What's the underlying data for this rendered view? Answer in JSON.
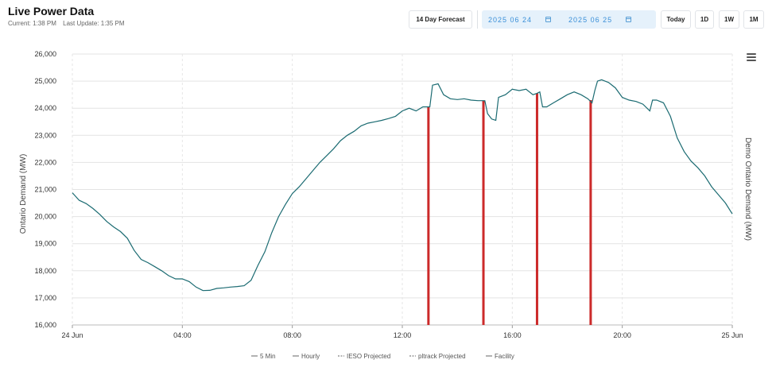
{
  "header": {
    "title": "Live Power Data",
    "current": "Current: 1:38 PM",
    "last_update": "Last Update: 1:35 PM"
  },
  "toolbar": {
    "forecast_label": "14 Day Forecast",
    "start_date": "2025 06 24",
    "end_date": "2025 06 25",
    "today_label": "Today",
    "d1_label": "1D",
    "w1_label": "1W",
    "m1_label": "1M"
  },
  "colors": {
    "series": "#1b6b72",
    "event": "#cc2a2a",
    "grid": "#e3e3e3"
  },
  "chart_data": {
    "type": "line",
    "ylabel": "Ontario Demand (MW)",
    "y2label": "Demo Ontario Demand (MW)",
    "ylim": [
      16000,
      26000
    ],
    "yticks": [
      "16,000",
      "17,000",
      "18,000",
      "19,000",
      "20,000",
      "21,000",
      "22,000",
      "23,000",
      "24,000",
      "25,000",
      "26,000"
    ],
    "xlim": [
      0,
      24
    ],
    "xticks": [
      {
        "hour": 0,
        "label": "24 Jun"
      },
      {
        "hour": 4,
        "label": "04:00"
      },
      {
        "hour": 8,
        "label": "08:00"
      },
      {
        "hour": 12,
        "label": "12:00"
      },
      {
        "hour": 16,
        "label": "16:00"
      },
      {
        "hour": 20,
        "label": "20:00"
      },
      {
        "hour": 24,
        "label": "25 Jun"
      }
    ],
    "legend_position": "bottom",
    "legend": [
      "5 Min",
      "Hourly",
      "IESO Projected",
      "pltrack Projected",
      "Facility"
    ],
    "series": [
      {
        "name": "5 Min",
        "points": [
          [
            0,
            20880
          ],
          [
            0.25,
            20600
          ],
          [
            0.5,
            20480
          ],
          [
            0.75,
            20300
          ],
          [
            1,
            20080
          ],
          [
            1.25,
            19820
          ],
          [
            1.5,
            19620
          ],
          [
            1.75,
            19450
          ],
          [
            2,
            19200
          ],
          [
            2.25,
            18750
          ],
          [
            2.5,
            18420
          ],
          [
            2.75,
            18300
          ],
          [
            3,
            18150
          ],
          [
            3.25,
            18000
          ],
          [
            3.5,
            17820
          ],
          [
            3.75,
            17700
          ],
          [
            4,
            17700
          ],
          [
            4.25,
            17600
          ],
          [
            4.5,
            17400
          ],
          [
            4.75,
            17270
          ],
          [
            5,
            17280
          ],
          [
            5.25,
            17350
          ],
          [
            5.5,
            17370
          ],
          [
            5.75,
            17400
          ],
          [
            6,
            17420
          ],
          [
            6.25,
            17450
          ],
          [
            6.5,
            17650
          ],
          [
            6.75,
            18200
          ],
          [
            7,
            18700
          ],
          [
            7.25,
            19400
          ],
          [
            7.5,
            20000
          ],
          [
            7.75,
            20450
          ],
          [
            8,
            20850
          ],
          [
            8.25,
            21100
          ],
          [
            8.5,
            21400
          ],
          [
            8.75,
            21700
          ],
          [
            9,
            22000
          ],
          [
            9.25,
            22250
          ],
          [
            9.5,
            22500
          ],
          [
            9.75,
            22800
          ],
          [
            10,
            23000
          ],
          [
            10.25,
            23150
          ],
          [
            10.5,
            23350
          ],
          [
            10.75,
            23450
          ],
          [
            11,
            23500
          ],
          [
            11.25,
            23550
          ],
          [
            11.5,
            23620
          ],
          [
            11.75,
            23700
          ],
          [
            12,
            23900
          ],
          [
            12.25,
            24000
          ],
          [
            12.5,
            23900
          ],
          [
            12.75,
            24050
          ],
          [
            13,
            24050
          ],
          [
            13.1,
            24850
          ],
          [
            13.3,
            24900
          ],
          [
            13.5,
            24500
          ],
          [
            13.75,
            24350
          ],
          [
            14,
            24320
          ],
          [
            14.25,
            24350
          ],
          [
            14.5,
            24300
          ],
          [
            14.75,
            24280
          ],
          [
            15,
            24280
          ],
          [
            15.1,
            23800
          ],
          [
            15.25,
            23600
          ],
          [
            15.4,
            23550
          ],
          [
            15.5,
            24400
          ],
          [
            15.75,
            24500
          ],
          [
            16,
            24700
          ],
          [
            16.25,
            24650
          ],
          [
            16.5,
            24700
          ],
          [
            16.75,
            24500
          ],
          [
            16.9,
            24550
          ],
          [
            17,
            24600
          ],
          [
            17.1,
            24050
          ],
          [
            17.25,
            24050
          ],
          [
            17.5,
            24200
          ],
          [
            17.75,
            24350
          ],
          [
            18,
            24500
          ],
          [
            18.25,
            24600
          ],
          [
            18.5,
            24500
          ],
          [
            18.75,
            24350
          ],
          [
            18.9,
            24200
          ],
          [
            19,
            24650
          ],
          [
            19.1,
            25000
          ],
          [
            19.25,
            25050
          ],
          [
            19.5,
            24950
          ],
          [
            19.75,
            24750
          ],
          [
            20,
            24400
          ],
          [
            20.25,
            24300
          ],
          [
            20.5,
            24250
          ],
          [
            20.75,
            24150
          ],
          [
            21,
            23900
          ],
          [
            21.1,
            24300
          ],
          [
            21.25,
            24300
          ],
          [
            21.5,
            24200
          ],
          [
            21.75,
            23700
          ],
          [
            22,
            22900
          ],
          [
            22.25,
            22400
          ],
          [
            22.5,
            22050
          ],
          [
            22.75,
            21800
          ],
          [
            23,
            21500
          ],
          [
            23.25,
            21100
          ],
          [
            23.5,
            20800
          ],
          [
            23.75,
            20500
          ],
          [
            24,
            20100
          ]
        ]
      }
    ],
    "event_bars": [
      {
        "hour": 12.95,
        "value": 24050
      },
      {
        "hour": 14.95,
        "value": 24280
      },
      {
        "hour": 16.9,
        "value": 24550
      },
      {
        "hour": 18.85,
        "value": 24300
      }
    ]
  }
}
